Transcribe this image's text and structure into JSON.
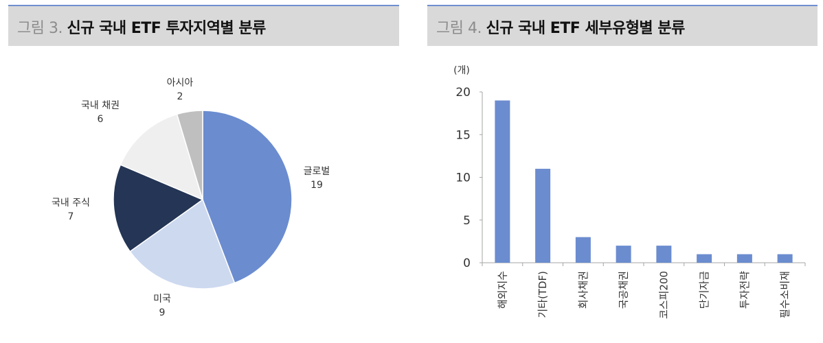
{
  "left_panel": {
    "title_prefix": "그림 3.",
    "title_main": "신규 국내 ETF 투자지역별 분류"
  },
  "right_panel": {
    "title_prefix": "그림 4.",
    "title_main": "신규 국내 ETF 세부유형별 분류"
  },
  "colors": {
    "header_bg": "#d9d9d9",
    "header_line": "#6f8fcf",
    "bar": "#6b8ccf",
    "axis": "#a6a6a6"
  },
  "chart_data": [
    {
      "type": "pie",
      "title": "신규 국내 ETF 투자지역별 분류",
      "categories": [
        "글로벌",
        "미국",
        "국내 주식",
        "국내 채권",
        "아시아"
      ],
      "values": [
        19,
        9,
        7,
        6,
        2
      ],
      "colors": [
        "#6b8ccf",
        "#cdd9ef",
        "#243555",
        "#efefef",
        "#bfbfbf"
      ],
      "start_angle_deg": 0,
      "direction": "clockwise",
      "data_labels": [
        "글로벌\n19",
        "미국\n9",
        "국내 주식\n7",
        "국내 채권\n6",
        "아시아\n2"
      ]
    },
    {
      "type": "bar",
      "title": "신규 국내 ETF 세부유형별 분류",
      "categories": [
        "해외지수",
        "기타(TDF)",
        "회사채권",
        "국공채권",
        "코스피200",
        "단기자금",
        "투자전략",
        "필수소비재"
      ],
      "values": [
        19,
        11,
        3,
        2,
        2,
        1,
        1,
        1
      ],
      "ylabel": "(개)",
      "xlabel": "",
      "ylim": [
        0,
        20
      ],
      "yticks": [
        0,
        5,
        10,
        15,
        20
      ],
      "grid": false,
      "legend": null
    }
  ]
}
